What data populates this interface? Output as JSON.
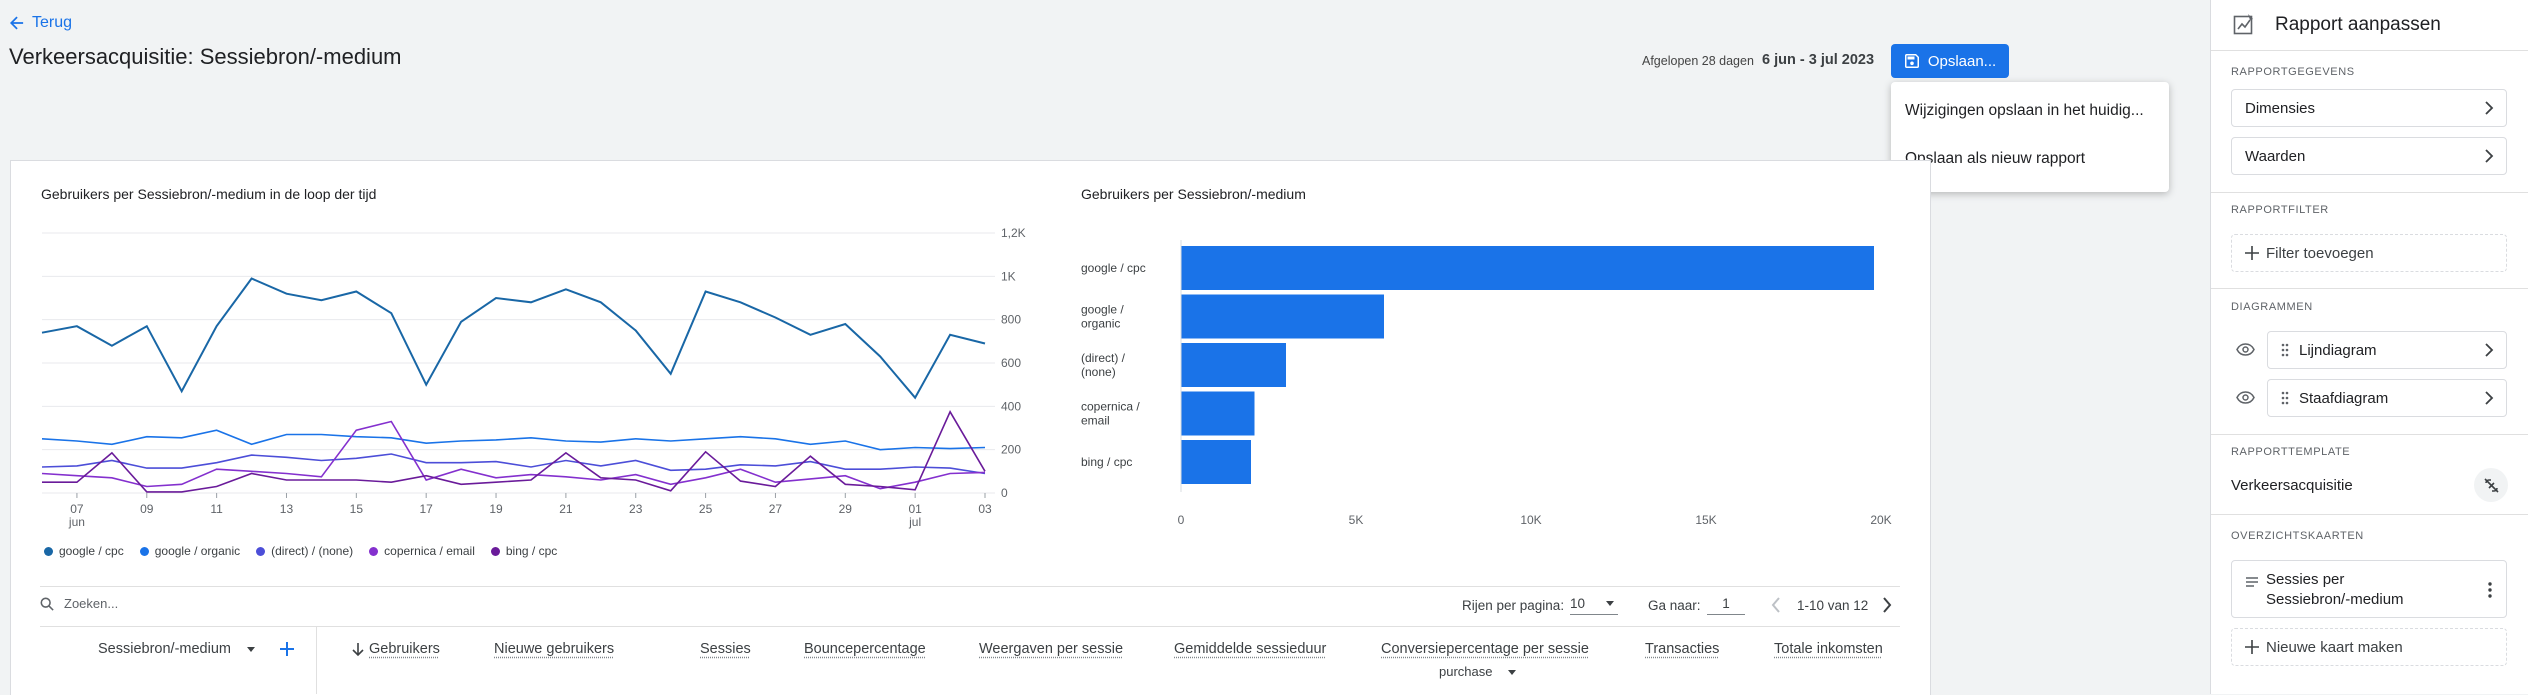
{
  "header": {
    "back_label": "Terug",
    "page_title": "Verkeersacquisitie: Sessiebron/-medium",
    "date_label": "Afgelopen 28 dagen",
    "date_value": "6 jun - 3 jul 2023",
    "save_label": "Opslaan...",
    "save_menu": [
      "Wijzigingen opslaan in het huidig...",
      "Opslaan als nieuw rapport"
    ]
  },
  "colors": {
    "accent": "#1a73e8",
    "line1": "#1967a6",
    "line2": "#1a73e8",
    "line3": "#4c4ed8",
    "line4": "#8430ce",
    "line5": "#6a1b9a"
  },
  "chart_data": [
    {
      "type": "line",
      "title": "Gebruikers per Sessiebron/-medium in de loop der tijd",
      "x_tick_labels": [
        "07",
        "09",
        "11",
        "13",
        "15",
        "17",
        "19",
        "21",
        "23",
        "25",
        "27",
        "29",
        "01",
        "03"
      ],
      "x_tick_sublabels": {
        "07": "jun",
        "01": "jul"
      },
      "y_tick_labels": [
        "1,2K",
        "1K",
        "800",
        "600",
        "400",
        "200",
        "0"
      ],
      "ylim": [
        0,
        1200
      ],
      "x": [
        "jun 6",
        "jun 7",
        "jun 8",
        "jun 9",
        "jun 10",
        "jun 11",
        "jun 12",
        "jun 13",
        "jun 14",
        "jun 15",
        "jun 16",
        "jun 17",
        "jun 18",
        "jun 19",
        "jun 20",
        "jun 21",
        "jun 22",
        "jun 23",
        "jun 24",
        "jun 25",
        "jun 26",
        "jun 27",
        "jun 28",
        "jun 29",
        "jun 30",
        "jul 1",
        "jul 2",
        "jul 3"
      ],
      "series": [
        {
          "name": "google / cpc",
          "values": [
            740,
            770,
            680,
            770,
            470,
            770,
            990,
            920,
            890,
            930,
            830,
            500,
            790,
            900,
            880,
            940,
            880,
            750,
            550,
            930,
            880,
            810,
            730,
            780,
            630,
            440,
            730,
            690
          ]
        },
        {
          "name": "google / organic",
          "values": [
            250,
            240,
            225,
            260,
            255,
            290,
            225,
            270,
            270,
            260,
            255,
            230,
            240,
            245,
            255,
            240,
            235,
            250,
            240,
            250,
            260,
            250,
            225,
            240,
            200,
            210,
            205,
            210
          ]
        },
        {
          "name": "(direct) / (none)",
          "values": [
            120,
            125,
            150,
            115,
            115,
            140,
            175,
            165,
            150,
            160,
            180,
            140,
            140,
            145,
            120,
            150,
            125,
            150,
            105,
            110,
            130,
            125,
            145,
            110,
            110,
            120,
            115,
            90
          ]
        },
        {
          "name": "copernica / email",
          "values": [
            90,
            80,
            70,
            30,
            40,
            110,
            100,
            90,
            75,
            290,
            330,
            60,
            110,
            70,
            85,
            75,
            60,
            85,
            40,
            70,
            110,
            50,
            65,
            80,
            20,
            50,
            90,
            95
          ]
        },
        {
          "name": "bing / cpc",
          "values": [
            50,
            50,
            185,
            5,
            5,
            30,
            90,
            60,
            60,
            60,
            50,
            80,
            40,
            50,
            60,
            185,
            70,
            60,
            10,
            190,
            55,
            30,
            170,
            40,
            30,
            15,
            375,
            100
          ]
        }
      ]
    },
    {
      "type": "bar",
      "orientation": "horizontal",
      "title": "Gebruikers per Sessiebron/-medium",
      "categories": [
        "google / cpc",
        "google / organic",
        "(direct) / (none)",
        "copernica / email",
        "bing / cpc"
      ],
      "values": [
        19800,
        5800,
        3000,
        2100,
        2000
      ],
      "x_tick_labels": [
        "0",
        "5K",
        "10K",
        "15K",
        "20K"
      ],
      "xlim": [
        0,
        20000
      ],
      "color": "#1a73e8"
    }
  ],
  "table": {
    "search_placeholder": "Zoeken...",
    "rows_per_page_label": "Rijen per pagina:",
    "rows_per_page_value": "10",
    "goto_label": "Ga naar:",
    "goto_value": "1",
    "range_label": "1-10 van 12",
    "dimension_label": "Sessiebron/-medium",
    "columns": [
      "Gebruikers",
      "Nieuwe gebruikers",
      "Sessies",
      "Bouncepercentage",
      "Weergaven per sessie",
      "Gemiddelde sessieduur",
      "Conversiepercentage per sessie",
      "Transacties",
      "Totale inkomsten"
    ],
    "conversion_event": "purchase"
  },
  "panel": {
    "title": "Rapport aanpassen",
    "report_data_heading": "RAPPORTGEGEVENS",
    "dimensions_label": "Dimensies",
    "metrics_label": "Waarden",
    "filter_heading": "RAPPORTFILTER",
    "add_filter_label": "Filter toevoegen",
    "charts_heading": "DIAGRAMMEN",
    "line_chart_label": "Lijndiagram",
    "bar_chart_label": "Staafdiagram",
    "template_heading": "RAPPORTTEMPLATE",
    "template_name": "Verkeersacquisitie",
    "summary_heading": "OVERZICHTSKAARTEN",
    "summary_card_label": "Sessies per Sessiebron/-medium",
    "new_card_label": "Nieuwe kaart maken"
  }
}
